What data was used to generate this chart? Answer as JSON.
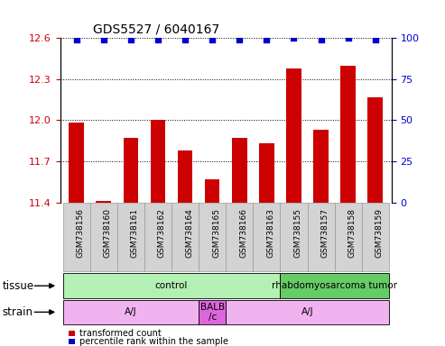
{
  "title": "GDS5527 / 6040167",
  "samples": [
    "GSM738156",
    "GSM738160",
    "GSM738161",
    "GSM738162",
    "GSM738164",
    "GSM738165",
    "GSM738166",
    "GSM738163",
    "GSM738155",
    "GSM738157",
    "GSM738158",
    "GSM738159"
  ],
  "bar_values": [
    11.98,
    11.41,
    11.87,
    12.0,
    11.78,
    11.57,
    11.87,
    11.83,
    12.38,
    11.93,
    12.4,
    12.17
  ],
  "percentile_values": [
    99,
    99,
    99,
    99,
    99,
    99,
    99,
    99,
    100,
    99,
    100,
    99
  ],
  "bar_color": "#cc0000",
  "percentile_color": "#0000cc",
  "ylim_left": [
    11.4,
    12.6
  ],
  "ylim_right": [
    0,
    100
  ],
  "yticks_left": [
    11.4,
    11.7,
    12.0,
    12.3,
    12.6
  ],
  "yticks_right": [
    0,
    25,
    50,
    75,
    100
  ],
  "tick_label_color_left": "#cc0000",
  "tick_label_color_right": "#0000cc",
  "tick_bg_color": "#d3d3d3",
  "tick_edge_color": "#999999",
  "tissue_groups": [
    {
      "label": "control",
      "start": 0,
      "end": 8,
      "color": "#b3f0b3"
    },
    {
      "label": "rhabdomyosarcoma tumor",
      "start": 8,
      "end": 12,
      "color": "#66cc66"
    }
  ],
  "strain_groups": [
    {
      "label": "A/J",
      "start": 0,
      "end": 5,
      "color": "#f0b3f0"
    },
    {
      "label": "BALB\n/c",
      "start": 5,
      "end": 6,
      "color": "#dd66dd"
    },
    {
      "label": "A/J",
      "start": 6,
      "end": 12,
      "color": "#f0b3f0"
    }
  ],
  "tissue_label": "tissue",
  "strain_label": "strain",
  "legend_red_label": "transformed count",
  "legend_blue_label": "percentile rank within the sample"
}
